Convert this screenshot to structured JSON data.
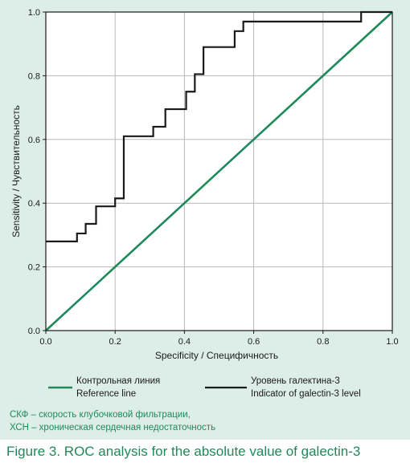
{
  "colors": {
    "background": "#ddeee8",
    "plot_area": "#ffffff",
    "grid": "#b8b8b8",
    "reference_line": "#1e8a5a",
    "galectin_line": "#1a1a1a",
    "notes_text": "#1e8a5a",
    "caption_text": "#1e8a5a"
  },
  "chart_data": {
    "type": "line",
    "title": "",
    "xlabel": "Specificity / Специфичность",
    "ylabel": "Sensitivity / Чувствительность",
    "xlim": [
      0.0,
      1.0
    ],
    "ylim": [
      0.0,
      1.0
    ],
    "grid": true,
    "x_ticks": [
      "0.0",
      "0.2",
      "0.4",
      "0.6",
      "0.8",
      "1.0"
    ],
    "y_ticks": [
      "0.0",
      "0.2",
      "0.4",
      "0.6",
      "0.8",
      "1.0"
    ],
    "legend_position": "bottom",
    "series": [
      {
        "name_ru": "Контрольная линия",
        "name_en": "Reference line",
        "color": "#1e8a5a",
        "x": [
          0.0,
          1.0
        ],
        "y": [
          0.0,
          1.0
        ]
      },
      {
        "name_ru": "Уровень галектина-3",
        "name_en": "Indicator of galectin-3 level",
        "color": "#1a1a1a",
        "x": [
          0.0,
          0.09,
          0.09,
          0.115,
          0.115,
          0.145,
          0.145,
          0.2,
          0.2,
          0.225,
          0.225,
          0.31,
          0.31,
          0.345,
          0.345,
          0.405,
          0.405,
          0.43,
          0.43,
          0.455,
          0.455,
          0.545,
          0.545,
          0.57,
          0.57,
          0.91,
          0.91,
          1.0
        ],
        "y": [
          0.28,
          0.28,
          0.305,
          0.305,
          0.335,
          0.335,
          0.39,
          0.39,
          0.415,
          0.415,
          0.61,
          0.61,
          0.64,
          0.64,
          0.695,
          0.695,
          0.75,
          0.75,
          0.805,
          0.805,
          0.89,
          0.89,
          0.94,
          0.94,
          0.97,
          0.97,
          1.0,
          1.0
        ]
      }
    ]
  },
  "notes": [
    "СКФ – скорость клубочковой фильтрации,",
    "ХСН – хроническая сердечная недостаточность"
  ],
  "caption": "Figure 3. ROC analysis for the absolute value of galectin-3"
}
